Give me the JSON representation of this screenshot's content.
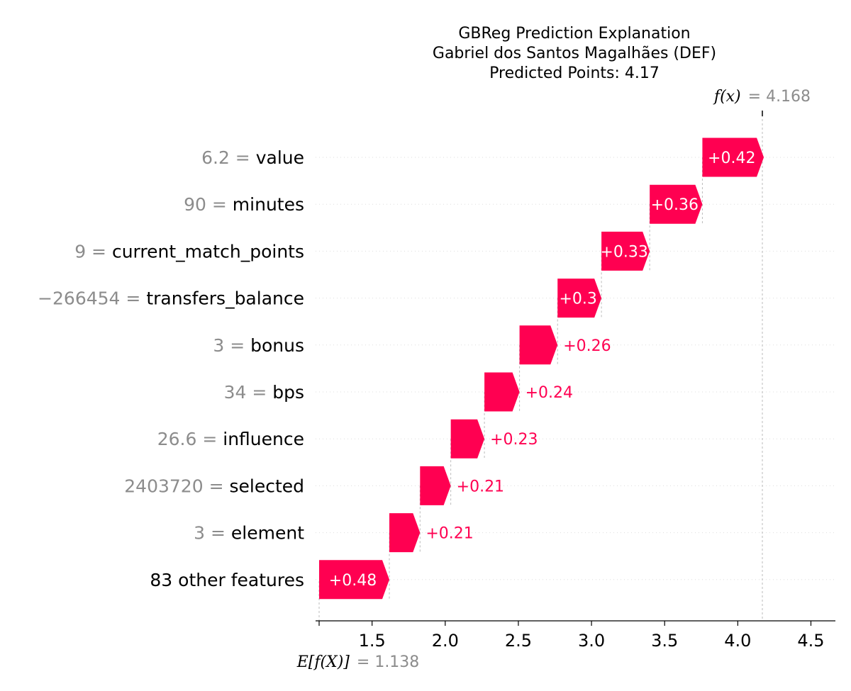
{
  "chart_data": {
    "type": "waterfall",
    "title_lines": [
      "GBReg Prediction Explanation",
      "Gabriel dos Santos Magalhães (DEF)",
      "Predicted Points: 4.17"
    ],
    "base_value": 1.138,
    "base_label": "E[f(X)]",
    "base_value_text": "= 1.138",
    "output_value": 4.168,
    "output_label": "f(x)",
    "output_value_text": "= 4.168",
    "xlim": [
      1.0,
      4.7
    ],
    "x_ticks": [
      1.5,
      2.0,
      2.5,
      3.0,
      3.5,
      4.0,
      4.5
    ],
    "x_tick_labels": [
      "1.5",
      "2.0",
      "2.5",
      "3.0",
      "3.5",
      "4.0",
      "4.5"
    ],
    "positive_color": "#ff0051",
    "features": [
      {
        "value_text": "6.2 =",
        "name": "value",
        "contribution": 0.42,
        "contribution_text": "+0.42"
      },
      {
        "value_text": "90 =",
        "name": "minutes",
        "contribution": 0.36,
        "contribution_text": "+0.36"
      },
      {
        "value_text": "9 =",
        "name": "current_match_points",
        "contribution": 0.33,
        "contribution_text": "+0.33"
      },
      {
        "value_text": "−266454 =",
        "name": "transfers_balance",
        "contribution": 0.3,
        "contribution_text": "+0.3"
      },
      {
        "value_text": "3 =",
        "name": "bonus",
        "contribution": 0.26,
        "contribution_text": "+0.26"
      },
      {
        "value_text": "34 =",
        "name": "bps",
        "contribution": 0.24,
        "contribution_text": "+0.24"
      },
      {
        "value_text": "26.6 =",
        "name": "influence",
        "contribution": 0.23,
        "contribution_text": "+0.23"
      },
      {
        "value_text": "2403720 =",
        "name": "selected",
        "contribution": 0.21,
        "contribution_text": "+0.21"
      },
      {
        "value_text": "3 =",
        "name": "element",
        "contribution": 0.21,
        "contribution_text": "+0.21"
      },
      {
        "value_text": "",
        "name": "83 other features",
        "contribution": 0.48,
        "contribution_text": "+0.48"
      }
    ]
  }
}
